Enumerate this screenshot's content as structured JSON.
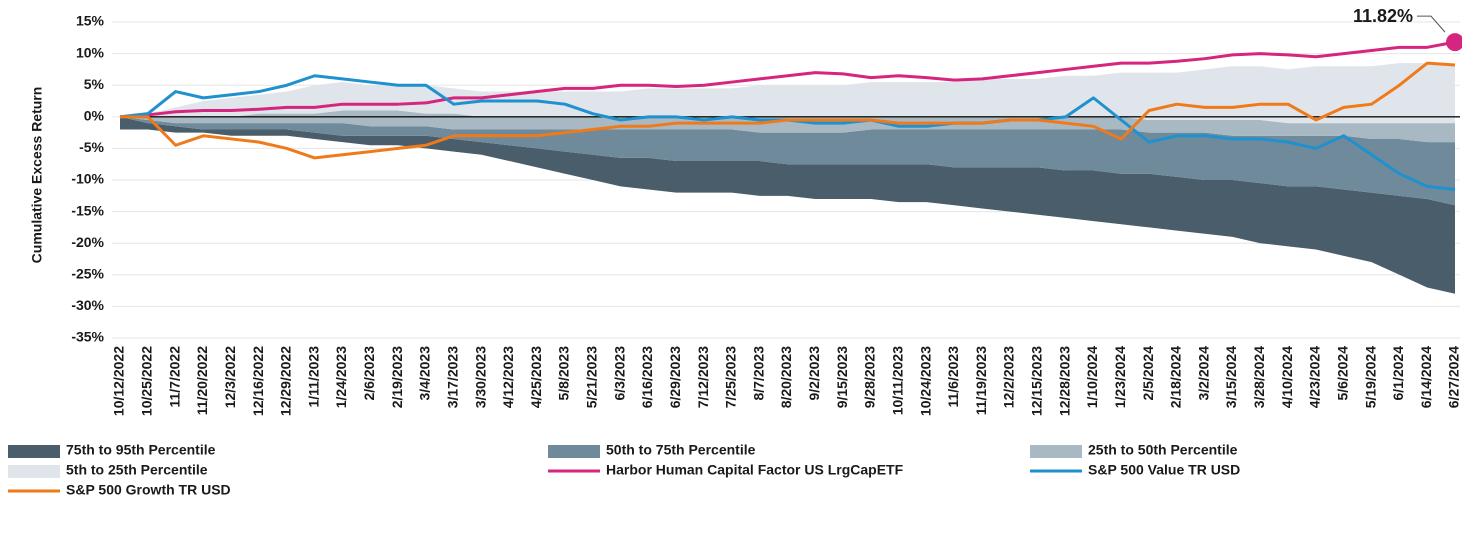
{
  "chart_data": {
    "type": "line",
    "ylabel": "Cumulative Excess Return",
    "categories": [
      "10/12/2022",
      "10/25/2022",
      "11/7/2022",
      "11/20/2022",
      "12/3/2022",
      "12/16/2022",
      "12/29/2022",
      "1/11/2023",
      "1/24/2023",
      "2/6/2023",
      "2/19/2023",
      "3/4/2023",
      "3/17/2023",
      "3/30/2023",
      "4/12/2023",
      "4/25/2023",
      "5/8/2023",
      "5/21/2023",
      "6/3/2023",
      "6/16/2023",
      "6/29/2023",
      "7/12/2023",
      "7/25/2023",
      "8/7/2023",
      "8/20/2023",
      "9/2/2023",
      "9/15/2023",
      "9/28/2023",
      "10/11/2023",
      "10/24/2023",
      "11/6/2023",
      "11/19/2023",
      "12/2/2023",
      "12/15/2023",
      "12/28/2023",
      "1/10/2024",
      "1/23/2024",
      "2/5/2024",
      "2/18/2024",
      "3/2/2024",
      "3/15/2024",
      "3/28/2024",
      "4/10/2024",
      "4/23/2024",
      "5/6/2024",
      "5/19/2024",
      "6/1/2024",
      "6/14/2024",
      "6/27/2024"
    ],
    "ylim": [
      -35,
      17
    ],
    "yticks": [
      {
        "value": 15,
        "label": "15%"
      },
      {
        "value": 10,
        "label": "10%"
      },
      {
        "value": 5,
        "label": "5%"
      },
      {
        "value": 0,
        "label": "0%"
      },
      {
        "value": -5,
        "label": "-5%"
      },
      {
        "value": -10,
        "label": "-10%"
      },
      {
        "value": -15,
        "label": "-15%"
      },
      {
        "value": -20,
        "label": "-20%"
      },
      {
        "value": -25,
        "label": "-25%"
      },
      {
        "value": -30,
        "label": "-30%"
      },
      {
        "value": -35,
        "label": "-35%"
      }
    ],
    "grid": true,
    "series": [
      {
        "name": "75th to 95th Percentile",
        "color": "#4a5d6b",
        "values": [
          0,
          -1,
          -1.5,
          -2,
          -2,
          -2,
          -2,
          -2.5,
          -3,
          -3,
          -3,
          -3,
          -3.5,
          -4,
          -4.5,
          -5,
          -5.5,
          -6,
          -6.5,
          -6.5,
          -7,
          -7,
          -7,
          -7,
          -7.5,
          -7.5,
          -7.5,
          -7.5,
          -7.5,
          -7.5,
          -8,
          -8,
          -8,
          -8,
          -8.5,
          -8.5,
          -9,
          -9,
          -9.5,
          -10,
          -10,
          -10.5,
          -11,
          -11,
          -11.5,
          -12,
          -12.5,
          -13,
          -14
        ],
        "lower": [
          -2,
          -2,
          -2.5,
          -2.5,
          -3,
          -3,
          -3,
          -3.5,
          -4,
          -4.5,
          -4.5,
          -5,
          -5.5,
          -6,
          -7,
          -8,
          -9,
          -10,
          -11,
          -11.5,
          -12,
          -12,
          -12,
          -12.5,
          -12.5,
          -13,
          -13,
          -13,
          -13.5,
          -13.5,
          -14,
          -14.5,
          -15,
          -15.5,
          -16,
          -16.5,
          -17,
          -17.5,
          -18,
          -18.5,
          -19,
          -20,
          -20.5,
          -21,
          -22,
          -23,
          -25,
          -27,
          -28
        ]
      },
      {
        "name": "50th to 75th Percentile",
        "color": "#6f8a9b",
        "values": [
          0,
          -0.5,
          -1,
          -1,
          -1,
          -1,
          -1,
          -1,
          -1,
          -1.5,
          -1.5,
          -1.5,
          -2,
          -2,
          -2,
          -2,
          -2,
          -2,
          -2,
          -2,
          -2,
          -2,
          -2,
          -2.5,
          -2.5,
          -2.5,
          -2.5,
          -2,
          -2,
          -2,
          -2,
          -2,
          -2,
          -2,
          -2,
          -2,
          -2,
          -2.5,
          -2.5,
          -2.5,
          -3,
          -3,
          -3,
          -3,
          -3,
          -3.5,
          -3.5,
          -4,
          -4
        ],
        "lower": [
          0,
          -1,
          -1.5,
          -2,
          -2,
          -2,
          -2,
          -2.5,
          -3,
          -3,
          -3,
          -3,
          -3.5,
          -4,
          -4.5,
          -5,
          -5.5,
          -6,
          -6.5,
          -6.5,
          -7,
          -7,
          -7,
          -7,
          -7.5,
          -7.5,
          -7.5,
          -7.5,
          -7.5,
          -7.5,
          -8,
          -8,
          -8,
          -8,
          -8.5,
          -8.5,
          -9,
          -9,
          -9.5,
          -10,
          -10,
          -10.5,
          -11,
          -11,
          -11.5,
          -12,
          -12.5,
          -13,
          -14
        ]
      },
      {
        "name": "25th to 50th Percentile",
        "color": "#a8b9c4",
        "values": [
          0,
          0,
          0,
          0,
          0,
          0.5,
          0.5,
          0.5,
          1,
          1,
          1,
          0.5,
          0.5,
          0,
          0,
          0,
          0,
          0,
          0,
          0,
          0,
          0,
          0,
          0,
          0,
          0,
          0,
          0,
          0,
          0,
          0,
          0,
          0,
          0,
          0,
          0,
          0,
          -0.5,
          -0.5,
          -0.5,
          -0.5,
          -0.5,
          -1,
          -1,
          -1,
          -1,
          -1,
          -1,
          -1
        ],
        "lower": [
          0,
          -0.5,
          -1,
          -1,
          -1,
          -1,
          -1,
          -1,
          -1,
          -1.5,
          -1.5,
          -1.5,
          -2,
          -2,
          -2,
          -2,
          -2,
          -2,
          -2,
          -2,
          -2,
          -2,
          -2,
          -2.5,
          -2.5,
          -2.5,
          -2.5,
          -2,
          -2,
          -2,
          -2,
          -2,
          -2,
          -2,
          -2,
          -2,
          -2,
          -2.5,
          -2.5,
          -2.5,
          -3,
          -3,
          -3,
          -3,
          -3,
          -3.5,
          -3.5,
          -4,
          -4
        ]
      },
      {
        "name": "5th to 25th Percentile",
        "color": "#dfe5ea",
        "values": [
          0,
          0.5,
          1.5,
          2.5,
          3,
          3.5,
          4,
          5,
          5.5,
          5,
          5,
          5,
          4.5,
          4,
          4,
          4,
          4,
          4,
          4,
          4.5,
          4.5,
          4.5,
          4.5,
          5,
          5,
          5,
          5,
          5.5,
          5.5,
          5.5,
          5.5,
          6,
          6,
          6,
          6.5,
          6.5,
          7,
          7,
          7,
          7.5,
          8,
          8,
          7.5,
          8,
          8,
          8,
          8.5,
          8.5,
          8
        ],
        "lower": [
          0,
          0,
          0,
          0,
          0,
          0.5,
          0.5,
          0.5,
          1,
          1,
          1,
          0.5,
          0.5,
          0,
          0,
          0,
          0,
          0,
          0,
          0,
          0,
          0,
          0,
          0,
          0,
          0,
          0,
          0,
          0,
          0,
          0,
          0,
          0,
          0,
          0,
          0,
          0,
          -0.5,
          -0.5,
          -0.5,
          -0.5,
          -0.5,
          -1,
          -1,
          -1,
          -1,
          -1,
          -1,
          -1
        ]
      },
      {
        "name": "Harbor Human Capital Factor US LrgCapETF",
        "color": "#d6257e",
        "values": [
          0,
          0.3,
          0.8,
          1,
          1,
          1.2,
          1.5,
          1.5,
          2,
          2,
          2,
          2.2,
          3,
          3,
          3.5,
          4,
          4.5,
          4.5,
          5,
          5,
          4.8,
          5,
          5.5,
          6,
          6.5,
          7,
          6.8,
          6.2,
          6.5,
          6.2,
          5.8,
          6,
          6.5,
          7,
          7.5,
          8,
          8.5,
          8.5,
          8.8,
          9.2,
          9.8,
          10,
          9.8,
          9.5,
          10,
          10.5,
          11,
          11,
          11.82
        ],
        "value_labels": [
          null,
          null,
          null,
          null,
          null,
          null,
          null,
          null,
          null,
          null,
          null,
          null,
          null,
          null,
          null,
          null,
          null,
          null,
          null,
          null,
          null,
          null,
          null,
          null,
          null,
          null,
          null,
          null,
          null,
          null,
          null,
          null,
          null,
          null,
          null,
          null,
          null,
          null,
          null,
          null,
          null,
          null,
          null,
          null,
          null,
          null,
          null,
          null,
          "11.82%"
        ]
      },
      {
        "name": "S&P 500 Value TR USD",
        "color": "#1f91cf",
        "values": [
          0,
          0.5,
          4,
          3,
          3.5,
          4,
          5,
          6.5,
          6,
          5.5,
          5,
          5,
          2,
          2.5,
          2.5,
          2.5,
          2,
          0.5,
          -0.5,
          0,
          0,
          -0.5,
          0,
          -0.5,
          -0.5,
          -1,
          -1,
          -0.5,
          -1.5,
          -1.5,
          -1,
          -1,
          -0.5,
          -0.5,
          0,
          3,
          -0.5,
          -4,
          -3,
          -3,
          -3.5,
          -3.5,
          -4,
          -5,
          -3,
          -6,
          -9,
          -11,
          -11.5
        ]
      },
      {
        "name": "S&P 500 Growth TR USD",
        "color": "#f07a1a",
        "values": [
          0,
          0,
          -4.5,
          -3,
          -3.5,
          -4,
          -5,
          -6.5,
          -6,
          -5.5,
          -5,
          -4.5,
          -3,
          -3,
          -3,
          -3,
          -2.5,
          -2,
          -1.5,
          -1.5,
          -1,
          -1,
          -1,
          -1,
          -0.5,
          -0.5,
          -0.5,
          -0.5,
          -1,
          -1,
          -1,
          -1,
          -0.5,
          -0.5,
          -1,
          -1.5,
          -3.5,
          1,
          2,
          1.5,
          1.5,
          2,
          2,
          -0.5,
          1.5,
          2,
          5,
          8.5,
          8.2
        ]
      }
    ]
  }
}
